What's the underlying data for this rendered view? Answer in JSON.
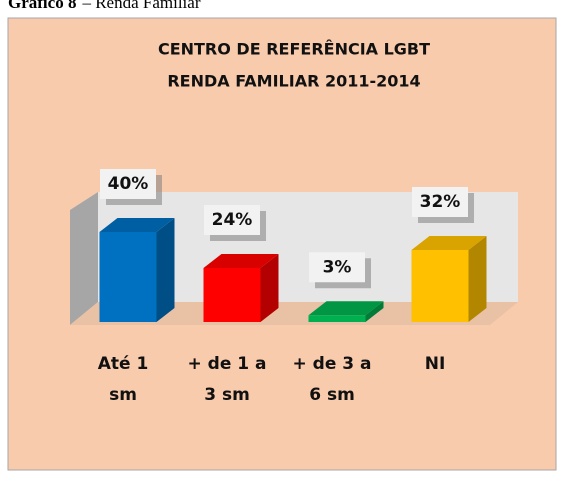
{
  "caption_label": "Gráfico 8",
  "caption_text": "– Renda Familiar",
  "chart_data": {
    "type": "bar3d",
    "title": [
      "CENTRO DE REFERÊNCIA LGBT",
      "RENDA FAMILIAR 2011-2014"
    ],
    "categories": [
      [
        "Até 1",
        "sm"
      ],
      [
        "+ de 1 a",
        "3 sm"
      ],
      [
        "+  de 3 a",
        "6 sm"
      ],
      [
        "NI"
      ]
    ],
    "values": [
      40,
      24,
      3,
      32
    ],
    "value_labels": [
      "40%",
      "24%",
      "3%",
      "32%"
    ],
    "colors": [
      "#0070c0",
      "#ff0000",
      "#00b050",
      "#ffc000"
    ]
  }
}
